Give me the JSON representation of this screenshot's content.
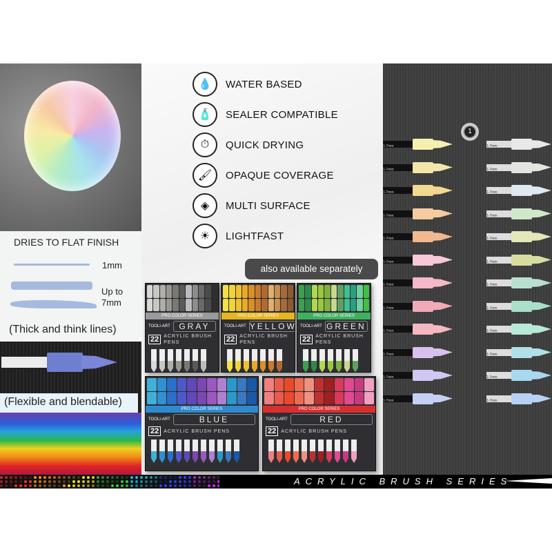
{
  "features": [
    {
      "icon": "water-drop-icon",
      "glyph": "💧",
      "label": "WATER BASED"
    },
    {
      "icon": "sealer-bottle-icon",
      "glyph": "🧴",
      "label": "SEALER COMPATIBLE"
    },
    {
      "icon": "stopwatch-icon",
      "glyph": "⏱",
      "label": "QUICK DRYING"
    },
    {
      "icon": "paint-splash-icon",
      "glyph": "🖌",
      "label": "OPAQUE COVERAGE"
    },
    {
      "icon": "layers-icon",
      "glyph": "◈",
      "label": "MULTI SURFACE"
    },
    {
      "icon": "sun-icon",
      "glyph": "☀",
      "label": "LIGHTFAST"
    }
  ],
  "finish_card": {
    "title": "DRIES TO FLAT FINISH",
    "size_min": "1mm",
    "size_max_line1": "Up to",
    "size_max_line2": "7mm",
    "caption": "(Thick and think lines)"
  },
  "flex_caption": "(Flexible and blendable)",
  "availability_badge": "also available separately",
  "boxes": [
    {
      "name": "GRAY",
      "count": "22",
      "brand": "TOOLI-ART",
      "series": "PRO COLOR SERIES",
      "product": "ACRYLIC BRUSH PENS",
      "accent": "#9a9a9a",
      "colors": [
        "#d8d8d4",
        "#c8c8c2",
        "#b0aea8",
        "#9a9690",
        "#7a7874",
        "#5c5a58",
        "#bdbdbd",
        "#8d8d8d",
        "#6a6a6a",
        "#4a4a4a",
        "#2e2e2e"
      ]
    },
    {
      "name": "YELLOW",
      "count": "22",
      "brand": "TOOLI-ART",
      "series": "PRO COLOR SERIES",
      "product": "ACRYLIC BRUSH PENS",
      "accent": "#e5b522",
      "colors": [
        "#f2e24a",
        "#f0d43a",
        "#efc030",
        "#e8a828",
        "#d99028",
        "#c97a2a",
        "#b06a30",
        "#e0b070",
        "#c89050",
        "#a86a3a",
        "#8a5a30"
      ]
    },
    {
      "name": "GREEN",
      "count": "22",
      "brand": "TOOLI-ART",
      "series": "PRO COLOR SERIES",
      "product": "ACRYLIC BRUSH PENS",
      "accent": "#3fb060",
      "colors": [
        "#3ca050",
        "#2e8a4a",
        "#b0d850",
        "#9ac840",
        "#80b040",
        "#c8d890",
        "#60a060",
        "#3ec090",
        "#2aa080",
        "#70d0a0",
        "#40c040"
      ]
    },
    {
      "name": "BLUE",
      "count": "22",
      "brand": "TOOLI-ART",
      "series": "PRO COLOR SERIES",
      "product": "ACRYLIC BRUSH PENS",
      "accent": "#2d8ad0",
      "colors": [
        "#40b0d8",
        "#3090d0",
        "#2870c8",
        "#5058c8",
        "#6048b8",
        "#7a48b0",
        "#9a58c0",
        "#b080d0",
        "#2a98c8",
        "#3a78c0",
        "#1a58a8"
      ]
    },
    {
      "name": "RED",
      "count": "22",
      "brand": "TOOLI-ART",
      "series": "PRO COLOR SERIES",
      "product": "ACRYLIC BRUSH PENS",
      "accent": "#d83030",
      "colors": [
        "#f08080",
        "#e85a4a",
        "#e84a2a",
        "#f06a50",
        "#f09080",
        "#c03030",
        "#a02020",
        "#d83a5a",
        "#e04a90",
        "#c83a80",
        "#f0a0c0"
      ]
    }
  ],
  "pens_left": [
    "#f4f0b0",
    "#f2e6a8",
    "#f2d890",
    "#f5cba0",
    "#f2b890",
    "#f6c8d8",
    "#f4b8c8",
    "#f2aab8",
    "#f4b8c0",
    "#d8c0ee",
    "#d0c8f0",
    "#c4d0f4"
  ],
  "pens_right": [
    "#e8e8e8",
    "#e4e4e0",
    "#e0e8f0",
    "#d0e8c8",
    "#e4e8b8",
    "#d8dca0",
    "#b8e0d0",
    "#a8e0c8",
    "#b8e8d8",
    "#b0e0e8",
    "#a8d8f0",
    "#b8d0f4"
  ],
  "pen_label": "1-7mm",
  "knob_label": "1",
  "banner": {
    "text": "ACRYLIC BRUSH SERIES"
  }
}
